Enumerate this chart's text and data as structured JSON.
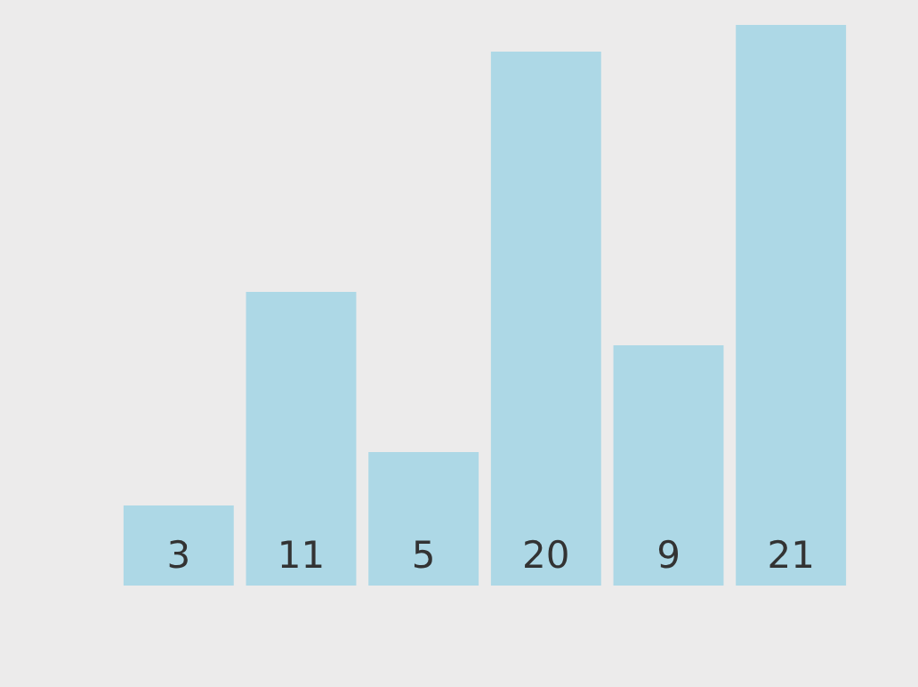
{
  "chart_data": {
    "type": "bar",
    "categories": [
      null,
      null,
      null,
      null,
      null,
      null
    ],
    "values": [
      3,
      11,
      5,
      20,
      9,
      21
    ],
    "color": "#add8e6",
    "data_labels": true
  }
}
